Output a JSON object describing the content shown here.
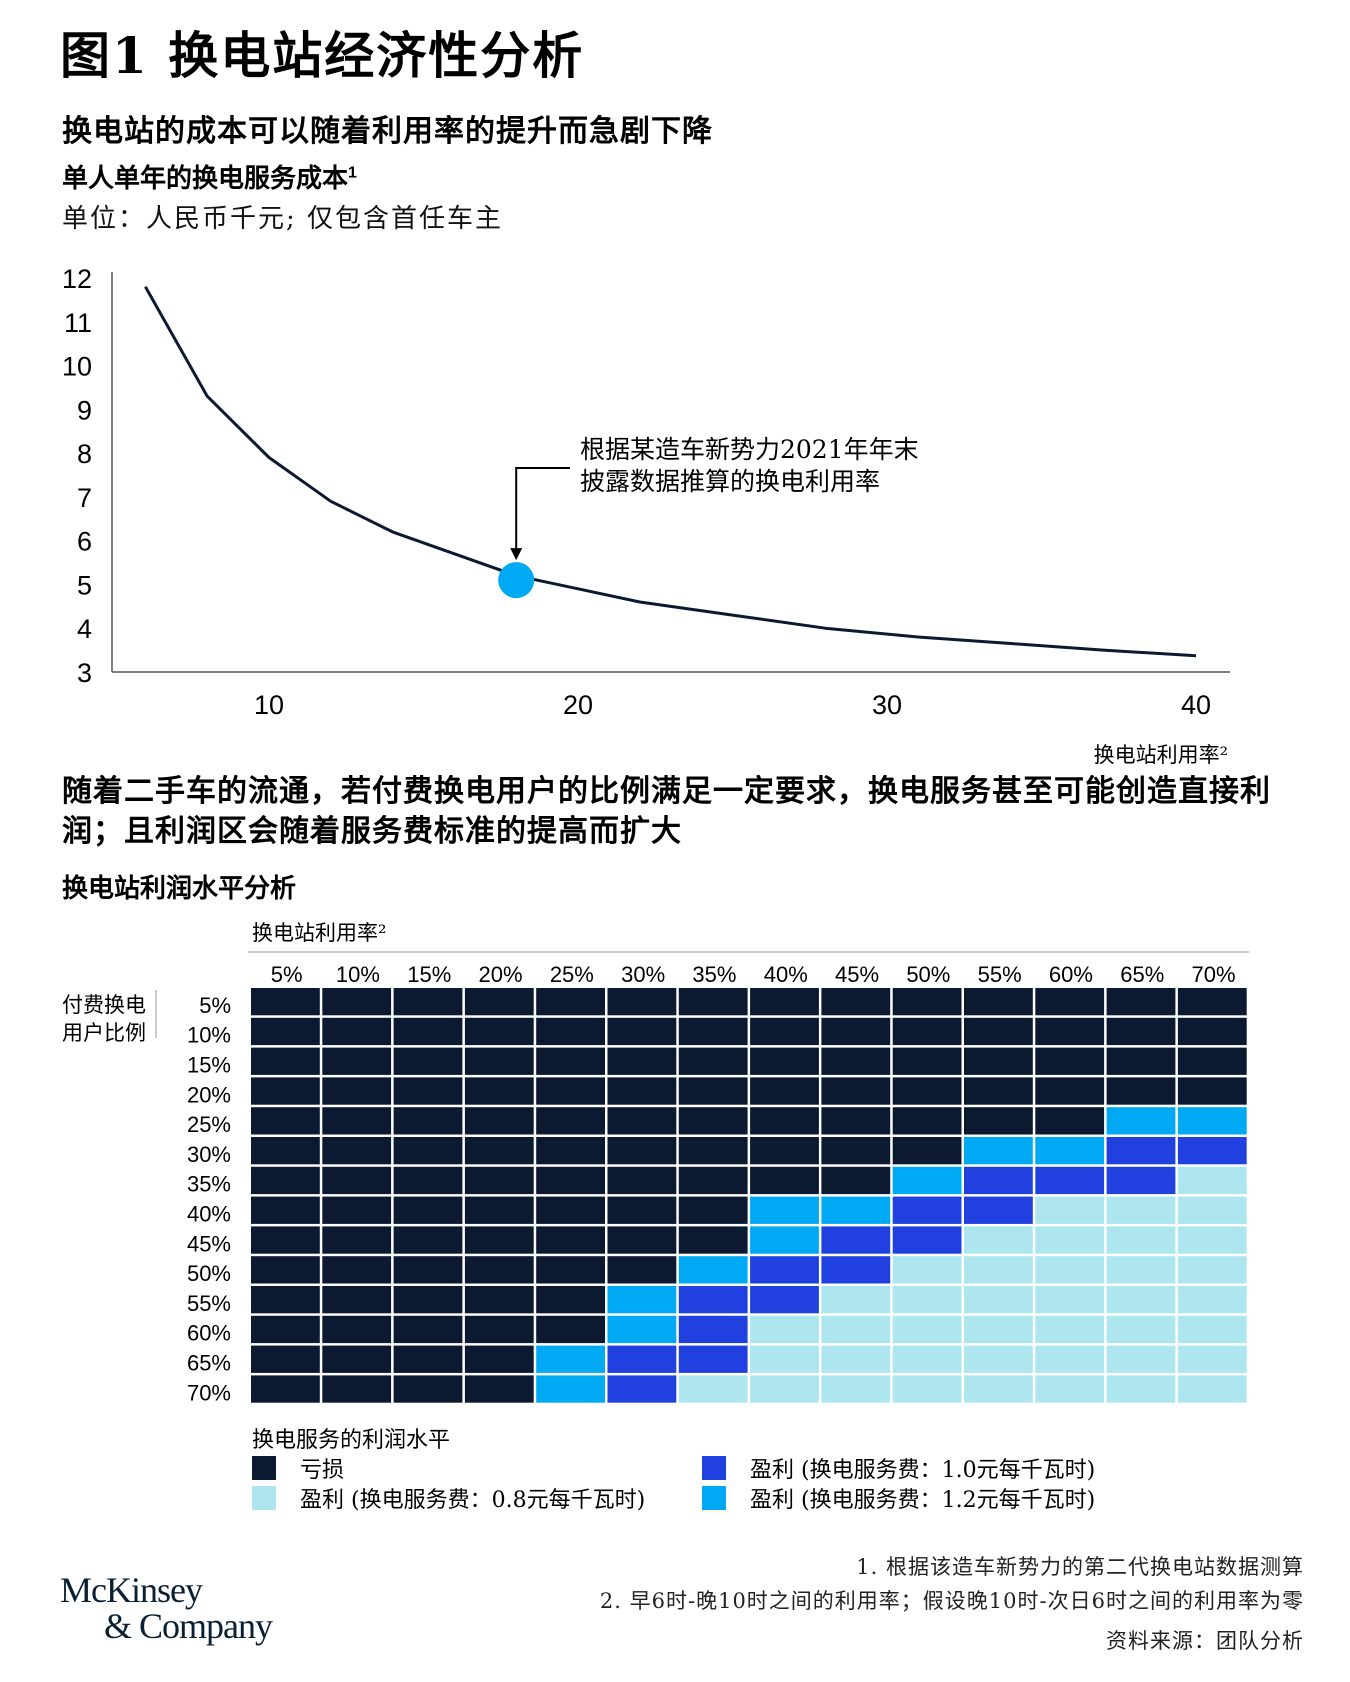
{
  "figure_title": "图1 换电站经济性分析",
  "section1_heading": "换电站的成本可以随着利用率的提升而急剧下降",
  "chart1_title": "单人单年的换电服务成本",
  "chart1_title_sup": "1",
  "chart1_unit": "单位：人民币千元; 仅包含首任车主",
  "section2_heading": "随着二手车的流通，若付费换电用户的比例满足一定要求，换电服务甚至可能创造直接利润；且利润区会随着服务费标准的提高而扩大",
  "chart2_title": "换电站利润水平分析",
  "colors": {
    "loss": "#0b1a30",
    "profit_08": "#ade6ef",
    "profit_10": "#2140e0",
    "profit_12": "#00a9f4",
    "line": "#0b1a30",
    "marker": "#00a9f4"
  },
  "chart_data": [
    {
      "type": "line",
      "title": "单人单年的换电服务成本",
      "xlabel": "换电站利用率²",
      "ylabel": "",
      "xlim": [
        5,
        41
      ],
      "ylim": [
        3,
        12
      ],
      "xticks": [
        10,
        20,
        30,
        40
      ],
      "yticks": [
        3,
        4,
        5,
        6,
        7,
        8,
        9,
        10,
        11,
        12
      ],
      "grid": false,
      "x": [
        6,
        8,
        10,
        12,
        14,
        16,
        18,
        20,
        22,
        25,
        28,
        31,
        34,
        37,
        40
      ],
      "y": [
        11.8,
        9.3,
        7.9,
        6.9,
        6.2,
        5.7,
        5.2,
        4.9,
        4.6,
        4.3,
        4.0,
        3.8,
        3.65,
        3.5,
        3.37
      ],
      "highlight_point": {
        "x": 18,
        "y": 5.1
      },
      "annotation": [
        "根据某造车新势力2021年年末",
        "披露数据推算的换电利用率"
      ]
    },
    {
      "type": "heatmap",
      "title": "换电站利润水平分析",
      "xlabel": "换电站利用率²",
      "ylabel": "付费换电用户比例",
      "x_categories": [
        "5%",
        "10%",
        "15%",
        "20%",
        "25%",
        "30%",
        "35%",
        "40%",
        "45%",
        "50%",
        "55%",
        "60%",
        "65%",
        "70%"
      ],
      "y_categories": [
        "5%",
        "10%",
        "15%",
        "20%",
        "25%",
        "30%",
        "35%",
        "40%",
        "45%",
        "50%",
        "55%",
        "60%",
        "65%",
        "70%"
      ],
      "legend_title": "换电服务的利润水平",
      "levels": [
        {
          "code": 0,
          "label": "亏损"
        },
        {
          "code": 1,
          "label": "盈利 (换电服务费：0.8元每千瓦时)"
        },
        {
          "code": 2,
          "label": "盈利 (换电服务费：1.0元每千瓦时)"
        },
        {
          "code": 3,
          "label": "盈利 (换电服务费：1.2元每千瓦时)"
        }
      ],
      "matrix": [
        [
          0,
          0,
          0,
          0,
          0,
          0,
          0,
          0,
          0,
          0,
          0,
          0,
          0,
          0
        ],
        [
          0,
          0,
          0,
          0,
          0,
          0,
          0,
          0,
          0,
          0,
          0,
          0,
          0,
          0
        ],
        [
          0,
          0,
          0,
          0,
          0,
          0,
          0,
          0,
          0,
          0,
          0,
          0,
          0,
          0
        ],
        [
          0,
          0,
          0,
          0,
          0,
          0,
          0,
          0,
          0,
          0,
          0,
          0,
          0,
          0
        ],
        [
          0,
          0,
          0,
          0,
          0,
          0,
          0,
          0,
          0,
          0,
          0,
          0,
          3,
          3
        ],
        [
          0,
          0,
          0,
          0,
          0,
          0,
          0,
          0,
          0,
          0,
          3,
          3,
          2,
          2
        ],
        [
          0,
          0,
          0,
          0,
          0,
          0,
          0,
          0,
          0,
          3,
          2,
          2,
          2,
          1
        ],
        [
          0,
          0,
          0,
          0,
          0,
          0,
          0,
          3,
          3,
          2,
          2,
          1,
          1,
          1
        ],
        [
          0,
          0,
          0,
          0,
          0,
          0,
          0,
          3,
          2,
          2,
          1,
          1,
          1,
          1
        ],
        [
          0,
          0,
          0,
          0,
          0,
          0,
          3,
          2,
          2,
          1,
          1,
          1,
          1,
          1
        ],
        [
          0,
          0,
          0,
          0,
          0,
          3,
          2,
          2,
          1,
          1,
          1,
          1,
          1,
          1
        ],
        [
          0,
          0,
          0,
          0,
          0,
          3,
          2,
          1,
          1,
          1,
          1,
          1,
          1,
          1
        ],
        [
          0,
          0,
          0,
          0,
          3,
          2,
          2,
          1,
          1,
          1,
          1,
          1,
          1,
          1
        ],
        [
          0,
          0,
          0,
          0,
          3,
          2,
          1,
          1,
          1,
          1,
          1,
          1,
          1,
          1
        ]
      ]
    }
  ],
  "notes": [
    "1. 根据该造车新势力的第二代换电站数据测算",
    "2. 早6时-晚10时之间的利用率；假设晚10时-次日6时之间的利用率为零"
  ],
  "source": "资料来源：团队分析",
  "logo": [
    "McKinsey",
    "& Company"
  ]
}
